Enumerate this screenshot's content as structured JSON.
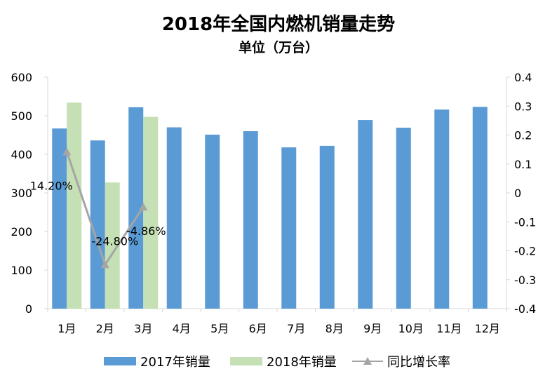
{
  "chart_data": {
    "type": "bar",
    "title": "2018年全国内燃机销量走势",
    "subtitle": "单位（万台）",
    "categories": [
      "1月",
      "2月",
      "3月",
      "4月",
      "5月",
      "6月",
      "7月",
      "8月",
      "9月",
      "10月",
      "11月",
      "12月"
    ],
    "series": [
      {
        "name": "2017年销量",
        "type": "bar",
        "axis": "left",
        "color": "#5b9bd5",
        "values": [
          467,
          436,
          522,
          470,
          451,
          460,
          418,
          422,
          489,
          469,
          516,
          523
        ]
      },
      {
        "name": "2018年销量",
        "type": "bar",
        "axis": "left",
        "color": "#c5e0b4",
        "values": [
          534,
          327,
          497,
          null,
          null,
          null,
          null,
          null,
          null,
          null,
          null,
          null
        ]
      },
      {
        "name": "同比增长率",
        "type": "line",
        "axis": "right",
        "color": "#a5a5a5",
        "marker": "triangle",
        "values": [
          0.142,
          -0.248,
          -0.0486,
          null,
          null,
          null,
          null,
          null,
          null,
          null,
          null,
          null
        ],
        "data_labels": [
          "14.20%",
          "-24.80%",
          "-4.86%",
          null,
          null,
          null,
          null,
          null,
          null,
          null,
          null,
          null
        ]
      }
    ],
    "y_left": {
      "min": 0,
      "max": 600,
      "step": 100,
      "ticks": [
        "0",
        "100",
        "200",
        "300",
        "400",
        "500",
        "600"
      ]
    },
    "y_right": {
      "min": -0.4,
      "max": 0.4,
      "step": 0.1,
      "ticks": [
        "-0.4",
        "-0.3",
        "-0.2",
        "-0.1",
        "0",
        "0.1",
        "0.2",
        "0.3",
        "0.4"
      ]
    },
    "grid": false,
    "legend_position": "bottom"
  }
}
